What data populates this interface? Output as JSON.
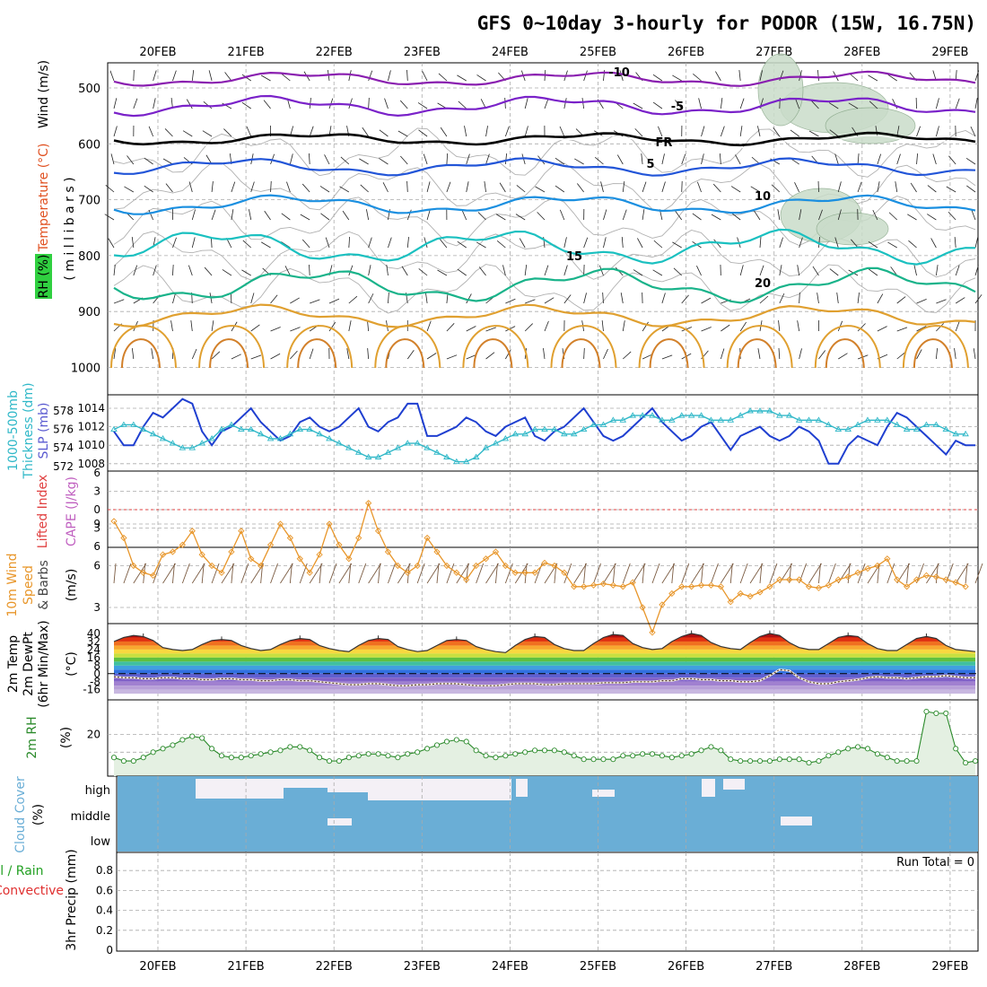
{
  "title": "GFS 0~10day 3-hourly for PODOR (15W, 16.75N)",
  "days": [
    "20FEB",
    "21FEB",
    "22FEB",
    "23FEB",
    "24FEB",
    "25FEB",
    "26FEB",
    "27FEB",
    "28FEB",
    "29FEB"
  ],
  "colors": {
    "temp_m10": "#8a1fb0",
    "temp_m5": "#7a22c9",
    "temp_5": "#2255d8",
    "temp_10": "#1a8fe0",
    "temp_15": "#1ac0c0",
    "temp_20": "#19b38a",
    "temp_warm": "#e0a030",
    "slp": "#1f3fd0",
    "thickness": "#30b8c8",
    "wind10": "#e8962a",
    "rh2": "#2a8a2a",
    "cloud": "#6aaed6",
    "cape_line": "#e04040"
  },
  "chart_data": [
    {
      "type": "line",
      "panel": "upper-air",
      "ylabel": [
        "RH (%)",
        "Temperature (°C)",
        "Wind (m/s)",
        "( m i l l i b a r s )"
      ],
      "y_ticks": [
        500,
        600,
        700,
        800,
        900,
        1000
      ],
      "ylim": [
        1000,
        450
      ],
      "isotherm_labels": [
        {
          "label": "-10",
          "level": 480
        },
        {
          "label": "-5",
          "level": 520
        },
        {
          "label": "FR",
          "level": 590
        },
        {
          "label": "5",
          "level": 645
        },
        {
          "label": "10",
          "level": 700
        },
        {
          "label": "15",
          "level": 770
        },
        {
          "label": "20",
          "level": 840
        }
      ]
    },
    {
      "type": "line",
      "panel": "slp-thickness",
      "ylabel": [
        "1000-500mb",
        "Thickness (dm)",
        "SLP (mb)"
      ],
      "thickness_ticks": [
        572,
        574,
        576,
        578
      ],
      "slp_ticks": [
        1008,
        1010,
        1012,
        1014
      ],
      "series": [
        {
          "name": "SLP (mb)",
          "values": [
            1011.5,
            1010,
            1010,
            1012,
            1013.5,
            1013,
            1014,
            1015,
            1014.5,
            1011.5,
            1010,
            1011.5,
            1012,
            1013,
            1014,
            1012.5,
            1011.5,
            1010.5,
            1011,
            1012.5,
            1013,
            1012,
            1011.5,
            1012,
            1013,
            1014,
            1012,
            1011.5,
            1012.5,
            1013,
            1014.5,
            1014.5,
            1011,
            1011,
            1011.5,
            1012,
            1013,
            1012.5,
            1011.5,
            1011,
            1012,
            1012.5,
            1013,
            1011,
            1010.5,
            1011.5,
            1012,
            1013,
            1014,
            1012.5,
            1011,
            1010.5,
            1011,
            1012,
            1013,
            1014,
            1012.5,
            1011.5,
            1010.5,
            1011,
            1012,
            1012.5,
            1011,
            1009.5,
            1011,
            1011.5,
            1012,
            1011,
            1010.5,
            1011,
            1012,
            1011.5,
            1010.5,
            1008,
            1008,
            1010,
            1011,
            1010.5,
            1010,
            1012,
            1013.5,
            1013,
            1012,
            1011,
            1010,
            1009,
            1010.5,
            1010,
            1010
          ]
        },
        {
          "name": "1000-500mb Thickness (dm)",
          "values": [
            576,
            576.5,
            576.5,
            576,
            575.5,
            575,
            574.5,
            574,
            574,
            574.5,
            575,
            576,
            576.5,
            576,
            576,
            575.5,
            575,
            575,
            575.5,
            576,
            576,
            575.5,
            575,
            574.5,
            574,
            573.5,
            573,
            573,
            573.5,
            574,
            574.5,
            574.5,
            574,
            573.5,
            573,
            572.5,
            572.5,
            573,
            574,
            574.5,
            575,
            575.5,
            575.5,
            576,
            576,
            576,
            575.5,
            575.5,
            576,
            576.5,
            576.5,
            577,
            577,
            577.5,
            577.5,
            577.5,
            577,
            577,
            577.5,
            577.5,
            577.5,
            577,
            577,
            577,
            577.5,
            578,
            578,
            578,
            577.5,
            577.5,
            577,
            577,
            577,
            576.5,
            576,
            576,
            576.5,
            577,
            577,
            577,
            576.5,
            576,
            576,
            576.5,
            576.5,
            576,
            575.5,
            575.5
          ]
        }
      ]
    },
    {
      "type": "line",
      "panel": "stability",
      "ylabel": [
        "Lifted Index",
        "CAPE (J/kg)"
      ],
      "y_ticks": [
        "6",
        "3",
        "0",
        "3",
        "6"
      ],
      "ylim": [
        -6,
        6
      ],
      "series": [
        {
          "name": "Lifted Index",
          "values": []
        }
      ]
    },
    {
      "type": "line",
      "panel": "wind10m",
      "ylabel": [
        "10m Wind",
        "Speed",
        "& Barbs",
        "(m/s)"
      ],
      "y_ticks": [
        3,
        6,
        9
      ],
      "ylim": [
        1,
        11
      ],
      "series": [
        {
          "name": "10m Wind Speed",
          "values": [
            9.2,
            8,
            6,
            5.5,
            5.3,
            6.8,
            7,
            7.5,
            8.5,
            6.8,
            6,
            5.5,
            7,
            8.5,
            6.5,
            6,
            7.5,
            9,
            8,
            6.5,
            5.5,
            6.8,
            9,
            7.5,
            6.5,
            8,
            10.5,
            8.5,
            7,
            6,
            5.5,
            6,
            8,
            7,
            6,
            5.5,
            5,
            6,
            6.5,
            7,
            6,
            5.5,
            5.5,
            5.5,
            6.2,
            6,
            5.5,
            4.5,
            4.5,
            4.6,
            4.7,
            4.6,
            4.5,
            4.8,
            3,
            1.2,
            3.2,
            4,
            4.5,
            4.5,
            4.6,
            4.6,
            4.5,
            3.4,
            4,
            3.8,
            4.1,
            4.5,
            5,
            5,
            5,
            4.5,
            4.4,
            4.6,
            5,
            5.2,
            5.5,
            5.8,
            6,
            6.5,
            5,
            4.5,
            5,
            5.3,
            5.2,
            5,
            4.8,
            4.5
          ]
        }
      ]
    },
    {
      "type": "area",
      "panel": "temp2m",
      "ylabel": [
        "2m Temp",
        "2m DewPt",
        "(6hr Min/Max)",
        "(°C)"
      ],
      "y_ticks": [
        40,
        32,
        24,
        16,
        8,
        0,
        -8,
        -16
      ],
      "ylim": [
        -20,
        42
      ],
      "series": [
        {
          "name": "2m Temp",
          "values": [
            32,
            36,
            38,
            37,
            33,
            26,
            24,
            23,
            24,
            29,
            33,
            34,
            33,
            28,
            25,
            23,
            24,
            29,
            33,
            35,
            34,
            28,
            25,
            23,
            22,
            28,
            33,
            35,
            34,
            27,
            24,
            22,
            23,
            28,
            33,
            34,
            33,
            27,
            24,
            22,
            21,
            28,
            34,
            37,
            36,
            29,
            25,
            23,
            23,
            30,
            36,
            39,
            38,
            30,
            26,
            24,
            25,
            32,
            37,
            40,
            38,
            31,
            27,
            25,
            24,
            31,
            37,
            40,
            38,
            31,
            26,
            24,
            24,
            30,
            36,
            38,
            37,
            30,
            25,
            23,
            23,
            29,
            35,
            37,
            35,
            28,
            24,
            23,
            22
          ]
        },
        {
          "name": "2m DewPt",
          "values": [
            -3,
            -4,
            -4,
            -5,
            -5,
            -4,
            -4,
            -5,
            -5,
            -6,
            -6,
            -5,
            -5,
            -6,
            -6,
            -7,
            -7,
            -6,
            -6,
            -7,
            -7,
            -8,
            -9,
            -10,
            -11,
            -11,
            -10,
            -10,
            -11,
            -12,
            -12,
            -11,
            -11,
            -10,
            -10,
            -10,
            -11,
            -12,
            -12,
            -12,
            -11,
            -10,
            -10,
            -10,
            -11,
            -11,
            -10,
            -10,
            -10,
            -10,
            -9,
            -9,
            -9,
            -8,
            -8,
            -8,
            -7,
            -7,
            -5,
            -5,
            -6,
            -6,
            -7,
            -7,
            -8,
            -8,
            -7,
            -2,
            4,
            3,
            -4,
            -8,
            -10,
            -10,
            -8,
            -7,
            -6,
            -4,
            -3,
            -4,
            -4,
            -5,
            -4,
            -3,
            -3,
            -2,
            -3,
            -4,
            -4
          ]
        }
      ]
    },
    {
      "type": "area",
      "panel": "rh2m",
      "ylabel": [
        "2m RH",
        "(%)"
      ],
      "y_ticks": [
        20
      ],
      "ylim": [
        0,
        34
      ],
      "series": [
        {
          "name": "2m RH",
          "values": [
            7,
            5,
            5,
            7,
            10,
            12,
            14,
            17,
            19,
            18,
            12,
            8,
            7,
            7,
            8,
            9,
            10,
            11,
            13,
            13,
            11,
            7,
            5,
            5,
            7,
            8,
            9,
            9,
            8,
            7,
            9,
            10,
            12,
            14,
            16,
            17,
            16,
            11,
            8,
            7,
            8,
            9,
            10,
            11,
            11,
            11,
            10,
            8,
            6,
            6,
            6,
            6,
            8,
            8,
            9,
            9,
            8,
            7,
            8,
            9,
            11,
            13,
            11,
            6,
            5,
            5,
            5,
            5,
            6,
            6,
            6,
            4,
            5,
            8,
            10,
            12,
            13,
            12,
            9,
            7,
            5,
            5,
            5,
            33,
            32,
            32,
            12,
            4,
            5
          ]
        }
      ]
    },
    {
      "type": "area",
      "panel": "cloud",
      "ylabel": [
        "Cloud Cover",
        "(%)"
      ],
      "y_ticks": [
        "high",
        "middle",
        "low"
      ]
    },
    {
      "type": "bar",
      "panel": "precip",
      "ylabel": [
        "Total / Rain",
        "Convective",
        "3hr Precip (mm)"
      ],
      "y_ticks": [
        0,
        0.2,
        0.4,
        0.6,
        0.8
      ],
      "ylim": [
        0,
        0.95
      ],
      "run_total": "Run Total = 0"
    }
  ]
}
